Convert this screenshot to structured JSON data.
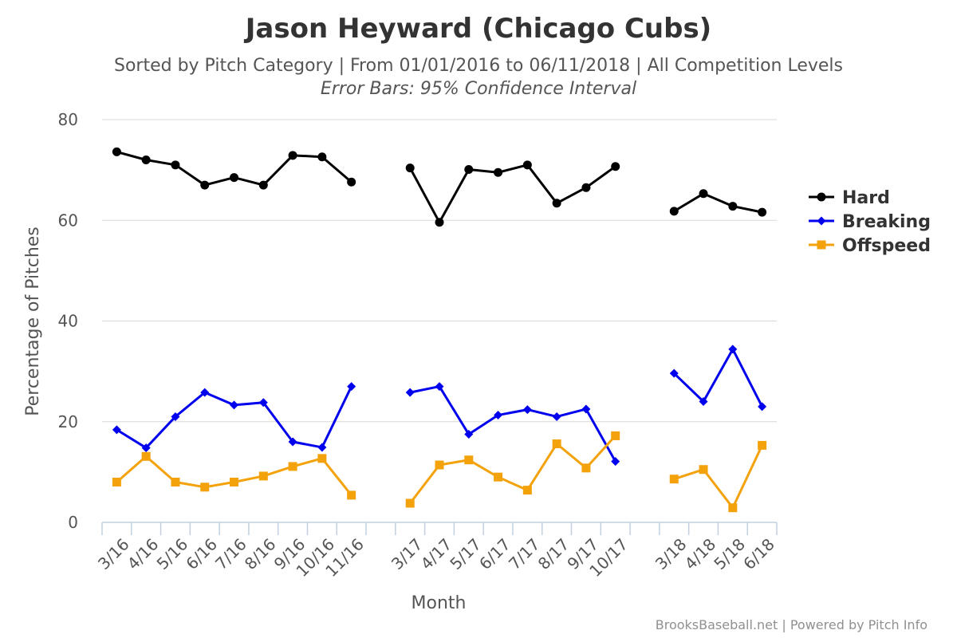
{
  "chart_data": {
    "type": "line",
    "title": "Jason Heyward (Chicago Cubs)",
    "subtitle": "Sorted by Pitch Category | From 01/01/2016 to 06/11/2018 | All Competition Levels",
    "subtitle2": "Error Bars: 95% Confidence Interval",
    "xlabel": "Month",
    "ylabel": "Percentage of Pitches",
    "ylim": [
      0,
      80
    ],
    "yticks": [
      "0",
      "20",
      "40",
      "60",
      "80"
    ],
    "grid": true,
    "legend_position": "right",
    "categories": [
      "3/16",
      "4/16",
      "5/16",
      "6/16",
      "7/16",
      "8/16",
      "9/16",
      "10/16",
      "11/16",
      "",
      "3/17",
      "4/17",
      "5/17",
      "6/17",
      "7/17",
      "8/17",
      "9/17",
      "10/17",
      "",
      "3/18",
      "4/18",
      "5/18",
      "6/18"
    ],
    "series": [
      {
        "name": "Hard",
        "color": "#000000",
        "marker": "circle",
        "values": [
          73.6,
          72.0,
          71.0,
          67.0,
          68.5,
          67.0,
          72.9,
          72.6,
          67.6,
          null,
          70.4,
          59.6,
          70.1,
          69.5,
          71.0,
          63.4,
          66.5,
          70.7,
          null,
          61.8,
          65.3,
          62.8,
          61.6
        ]
      },
      {
        "name": "Breaking",
        "color": "#0000ee",
        "marker": "diamond",
        "values": [
          18.4,
          14.8,
          21.0,
          25.8,
          23.3,
          23.8,
          16.0,
          14.9,
          27.0,
          null,
          25.8,
          27.0,
          17.5,
          21.3,
          22.4,
          21.0,
          22.5,
          12.1,
          null,
          29.6,
          24.0,
          34.4,
          23.0
        ]
      },
      {
        "name": "Offspeed",
        "color": "#f4a20c",
        "marker": "square",
        "values": [
          8.0,
          13.1,
          8.0,
          7.0,
          8.0,
          9.2,
          11.1,
          12.7,
          5.4,
          null,
          3.8,
          11.4,
          12.4,
          9.0,
          6.4,
          15.6,
          10.8,
          17.2,
          null,
          8.6,
          10.5,
          2.9,
          15.3
        ]
      }
    ]
  },
  "credits": "BrooksBaseball.net | Powered by Pitch Info"
}
